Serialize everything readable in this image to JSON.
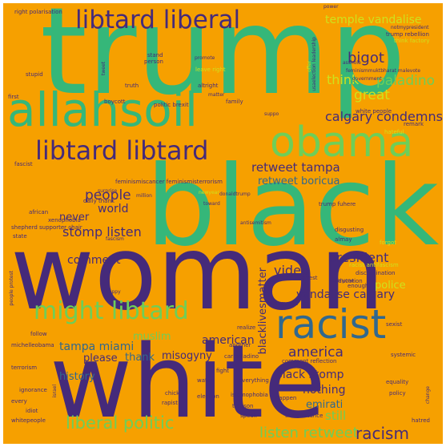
{
  "cloud": {
    "background": "#f6a000",
    "palette": {
      "purple": "#452a7a",
      "teal": "#31688e",
      "green": "#35b779",
      "lime": "#6ece58",
      "yellow": "#cfe11c",
      "light": "#b5de2b"
    },
    "words": [
      {
        "text": "trump",
        "color": "green"
      },
      {
        "text": "black",
        "color": "green"
      },
      {
        "text": "woman",
        "color": "purple"
      },
      {
        "text": "white",
        "color": "purple"
      },
      {
        "text": "allahsoil",
        "color": "green"
      },
      {
        "text": "obama",
        "color": "lime"
      },
      {
        "text": "racist",
        "color": "teal"
      },
      {
        "text": "libtard liberal",
        "color": "purple"
      },
      {
        "text": "libtard libtard",
        "color": "purple"
      },
      {
        "text": "might libtard",
        "color": "lime"
      },
      {
        "text": "liberal politic",
        "color": "lime"
      },
      {
        "text": "listen retweet",
        "color": "lime"
      },
      {
        "text": "racism",
        "color": "purple"
      },
      {
        "text": "america",
        "color": "purple"
      },
      {
        "text": "people",
        "color": "purple"
      },
      {
        "text": "president",
        "color": "purple"
      },
      {
        "text": "video",
        "color": "purple"
      },
      {
        "text": "stomp listen",
        "color": "purple"
      },
      {
        "text": "calgary condemns",
        "color": "purple"
      },
      {
        "text": "retweet tampa",
        "color": "purple"
      },
      {
        "text": "temple vandalise",
        "color": "yellow"
      },
      {
        "text": "bigot",
        "color": "purple"
      },
      {
        "text": "paladino",
        "color": "lime"
      },
      {
        "text": "think",
        "color": "yellow"
      },
      {
        "text": "great",
        "color": "yellow"
      },
      {
        "text": "retweet boricua",
        "color": "teal"
      },
      {
        "text": "world",
        "color": "purple"
      },
      {
        "text": "never",
        "color": "purple"
      },
      {
        "text": "comment",
        "color": "purple"
      },
      {
        "text": "vandalise calgary",
        "color": "purple"
      },
      {
        "text": "blacklivesmatter",
        "color": "purple"
      },
      {
        "text": "muslim",
        "color": "lime"
      },
      {
        "text": "american",
        "color": "purple"
      },
      {
        "text": "tampa miami",
        "color": "teal"
      },
      {
        "text": "thank",
        "color": "teal"
      },
      {
        "text": "misogyny",
        "color": "purple"
      },
      {
        "text": "please",
        "color": "purple"
      },
      {
        "text": "history",
        "color": "teal"
      },
      {
        "text": "black stomp",
        "color": "purple"
      },
      {
        "text": "nothing",
        "color": "purple"
      },
      {
        "text": "emirati",
        "color": "teal"
      },
      {
        "text": "still",
        "color": "lime"
      },
      {
        "text": "police",
        "color": "yellow"
      },
      {
        "text": "right polarisation",
        "color": "purple"
      },
      {
        "text": "power",
        "color": "purple"
      },
      {
        "text": "notmypresident",
        "color": "purple"
      },
      {
        "text": "trump rebellion",
        "color": "purple"
      },
      {
        "text": "think factory",
        "color": "yellow"
      },
      {
        "text": "feminismmuktbharat malevote",
        "color": "purple"
      },
      {
        "text": "government",
        "color": "purple"
      },
      {
        "text": "usaelection leadership",
        "color": "purple"
      },
      {
        "text": "stand",
        "color": "purple"
      },
      {
        "text": "person",
        "color": "purple"
      },
      {
        "text": "promote",
        "color": "purple"
      },
      {
        "text": "leave right",
        "color": "yellow"
      },
      {
        "text": "altright",
        "color": "purple"
      },
      {
        "text": "truth",
        "color": "purple"
      },
      {
        "text": "tweet",
        "color": "purple"
      },
      {
        "text": "stupid",
        "color": "purple"
      },
      {
        "text": "first",
        "color": "purple"
      },
      {
        "text": "asshole",
        "color": "purple"
      },
      {
        "text": "offer",
        "color": "yellow"
      },
      {
        "text": "matter",
        "color": "purple"
      },
      {
        "text": "boycott",
        "color": "purple"
      },
      {
        "text": "politic brexit",
        "color": "purple"
      },
      {
        "text": "family",
        "color": "purple"
      },
      {
        "text": "white people",
        "color": "purple"
      },
      {
        "text": "remark",
        "color": "purple"
      },
      {
        "text": "hateful",
        "color": "yellow"
      },
      {
        "text": "suppo",
        "color": "purple"
      },
      {
        "text": "fascist",
        "color": "purple"
      },
      {
        "text": "feminismiscancer feminismisterrorism",
        "color": "purple"
      },
      {
        "text": "surprise",
        "color": "purple"
      },
      {
        "text": "million",
        "color": "purple"
      },
      {
        "text": "newyear",
        "color": "yellow"
      },
      {
        "text": "donaldtrump",
        "color": "purple"
      },
      {
        "text": "daily thank",
        "color": "purple"
      },
      {
        "text": "toward",
        "color": "purple"
      },
      {
        "text": "trump fuhere",
        "color": "purple"
      },
      {
        "text": "african",
        "color": "purple"
      },
      {
        "text": "xenophobia",
        "color": "purple"
      },
      {
        "text": "shepherd supporter chair",
        "color": "purple"
      },
      {
        "text": "state",
        "color": "purple"
      },
      {
        "text": "fascism",
        "color": "purple"
      },
      {
        "text": "antisemitism",
        "color": "purple"
      },
      {
        "text": "disgusting",
        "color": "purple"
      },
      {
        "text": "almay",
        "color": "purple"
      },
      {
        "text": "forgot",
        "color": "yellow"
      },
      {
        "text": "education",
        "color": "purple"
      },
      {
        "text": "racist antifascism",
        "color": "yellow"
      },
      {
        "text": "discrimination",
        "color": "purple"
      },
      {
        "text": "enough",
        "color": "purple"
      },
      {
        "text": "arrest",
        "color": "purple"
      },
      {
        "text": "everyone",
        "color": "purple"
      },
      {
        "text": "people protest",
        "color": "purple"
      },
      {
        "text": "happy",
        "color": "purple"
      },
      {
        "text": "misogynist",
        "color": "purple"
      },
      {
        "text": "realize",
        "color": "purple"
      },
      {
        "text": "follow",
        "color": "purple"
      },
      {
        "text": "another",
        "color": "purple"
      },
      {
        "text": "carlpaladino",
        "color": "purple"
      },
      {
        "text": "comment reflection",
        "color": "purple"
      },
      {
        "text": "systemic",
        "color": "purple"
      },
      {
        "text": "equality",
        "color": "purple"
      },
      {
        "text": "policy",
        "color": "purple"
      },
      {
        "text": "michelleobama",
        "color": "purple"
      },
      {
        "text": "fight",
        "color": "purple"
      },
      {
        "text": "watch",
        "color": "purple"
      },
      {
        "text": "everything",
        "color": "purple"
      },
      {
        "text": "terrorism",
        "color": "purple"
      },
      {
        "text": "chick",
        "color": "purple"
      },
      {
        "text": "rapist",
        "color": "purple"
      },
      {
        "text": "election",
        "color": "purple"
      },
      {
        "text": "islamophobia",
        "color": "purple"
      },
      {
        "text": "happen",
        "color": "purple"
      },
      {
        "text": "ignorance",
        "color": "purple"
      },
      {
        "text": "israel",
        "color": "purple"
      },
      {
        "text": "treason",
        "color": "purple"
      },
      {
        "text": "every",
        "color": "purple"
      },
      {
        "text": "speak",
        "color": "purple"
      },
      {
        "text": "change",
        "color": "purple"
      },
      {
        "text": "idiot",
        "color": "purple"
      },
      {
        "text": "theresistance",
        "color": "purple"
      },
      {
        "text": "hatred",
        "color": "purple"
      },
      {
        "text": "whitepeople",
        "color": "purple"
      },
      {
        "text": "sexist",
        "color": "purple"
      }
    ]
  }
}
